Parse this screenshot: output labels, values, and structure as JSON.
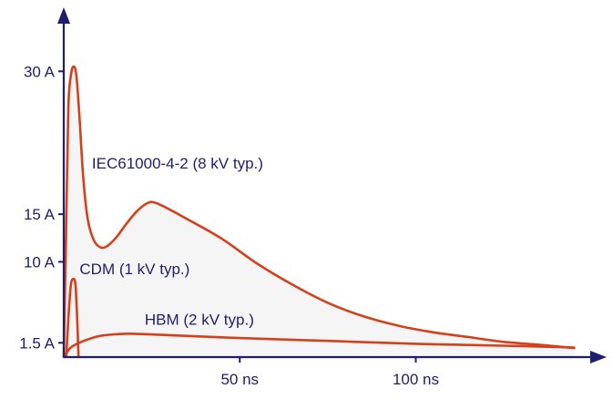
{
  "chart_data": {
    "type": "line",
    "title": "",
    "xlabel": "",
    "ylabel": "",
    "x_unit": "ns",
    "y_unit": "A",
    "xlim": [
      0,
      148
    ],
    "ylim": [
      0,
      35
    ],
    "x_ticks": [
      {
        "value": 50,
        "label": "50 ns"
      },
      {
        "value": 100,
        "label": "100 ns"
      }
    ],
    "y_ticks": [
      {
        "value": 1.5,
        "label": "1.5 A"
      },
      {
        "value": 10,
        "label": "10 A"
      },
      {
        "value": 15,
        "label": "15 A"
      },
      {
        "value": 30,
        "label": "30 A"
      }
    ],
    "series": [
      {
        "name": "IEC61000-4-2 (8 kV typ.)",
        "color": "#d4401c",
        "fill": "#f5f5f5",
        "points": [
          [
            0,
            0
          ],
          [
            0.6,
            12
          ],
          [
            1.3,
            26
          ],
          [
            2,
            29.5
          ],
          [
            2.8,
            30.5
          ],
          [
            3.6,
            29.5
          ],
          [
            4.5,
            25
          ],
          [
            5.5,
            19
          ],
          [
            6.8,
            14.5
          ],
          [
            8.5,
            12.3
          ],
          [
            10.5,
            11.5
          ],
          [
            12.5,
            11.7
          ],
          [
            15,
            12.6
          ],
          [
            18,
            14.1
          ],
          [
            21,
            15.4
          ],
          [
            24,
            16.2
          ],
          [
            26,
            16.2
          ],
          [
            29,
            15.7
          ],
          [
            35,
            14.5
          ],
          [
            45,
            12.4
          ],
          [
            55,
            9.8
          ],
          [
            65,
            7.6
          ],
          [
            75,
            5.7
          ],
          [
            85,
            4.3
          ],
          [
            95,
            3.3
          ],
          [
            105,
            2.6
          ],
          [
            115,
            2.1
          ],
          [
            125,
            1.6
          ],
          [
            135,
            1.3
          ],
          [
            145,
            0.95
          ]
        ]
      },
      {
        "name": "CDM (1 kV typ.)",
        "color": "#d4401c",
        "points": [
          [
            0.7,
            0
          ],
          [
            1.3,
            4
          ],
          [
            2,
            7.5
          ],
          [
            2.7,
            8.2
          ],
          [
            3.3,
            7.7
          ],
          [
            3.7,
            5
          ],
          [
            4,
            2
          ],
          [
            4.2,
            0
          ]
        ]
      },
      {
        "name": "HBM (2 kV typ.)",
        "color": "#d4401c",
        "points": [
          [
            0,
            0
          ],
          [
            2,
            1.0
          ],
          [
            5,
            1.6
          ],
          [
            10,
            2.2
          ],
          [
            15,
            2.4
          ],
          [
            20,
            2.45
          ],
          [
            30,
            2.3
          ],
          [
            50,
            2.0
          ],
          [
            75,
            1.7
          ],
          [
            100,
            1.4
          ],
          [
            125,
            1.2
          ],
          [
            145,
            1.0
          ]
        ]
      }
    ],
    "annotations": [
      {
        "text": "IEC61000-4-2 (8 kV typ.)",
        "x": 8,
        "y": 19.8
      },
      {
        "text": "CDM (1 kV typ.)",
        "x": 4.5,
        "y": 8.7
      },
      {
        "text": "HBM (2 kV typ.)",
        "x": 23,
        "y": 3.4
      }
    ]
  }
}
